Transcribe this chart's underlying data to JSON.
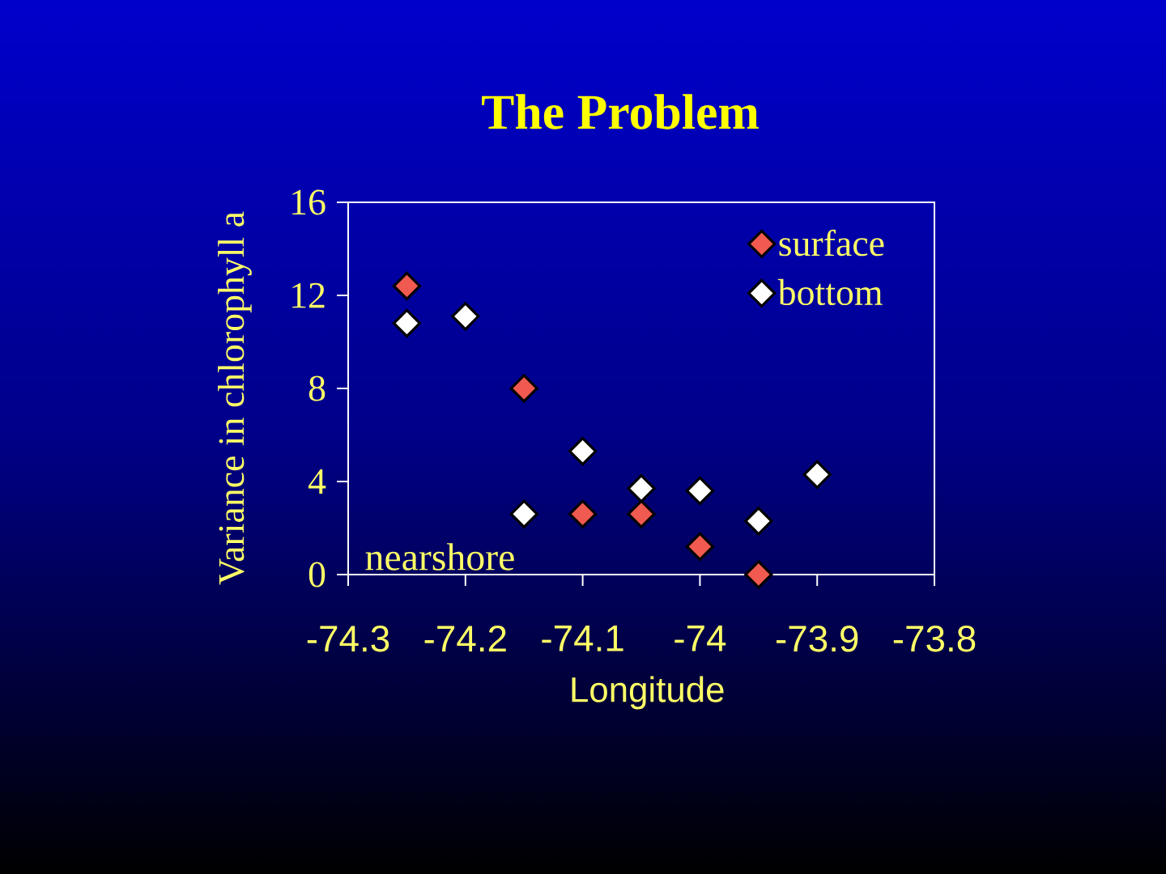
{
  "chart_data": {
    "type": "scatter",
    "title": "The Problem",
    "xlabel": "Longitude",
    "ylabel": "Variance in chlorophyll a",
    "annotations": [
      "nearshore"
    ],
    "xlim": [
      -74.3,
      -73.8
    ],
    "ylim": [
      0,
      16
    ],
    "xticks": [
      -74.3,
      -74.2,
      -74.1,
      -74,
      -73.9,
      -73.8
    ],
    "yticks": [
      0,
      4,
      8,
      12,
      16
    ],
    "marker": "diamond",
    "legend": "top right",
    "series": [
      {
        "name": "surface",
        "color": "#f05a50",
        "x": [
          -74.25,
          -74.15,
          -74.1,
          -74.05,
          -74.0,
          -73.95
        ],
        "values": [
          12.4,
          8.0,
          2.6,
          2.6,
          1.2,
          0
        ]
      },
      {
        "name": "bottom",
        "color": "#ffffff",
        "x": [
          -74.25,
          -74.2,
          -74.15,
          -74.1,
          -74.05,
          -74.0,
          -73.95,
          -73.9
        ],
        "values": [
          10.8,
          11.1,
          2.6,
          5.3,
          3.7,
          3.6,
          2.3,
          4.3
        ]
      }
    ]
  }
}
